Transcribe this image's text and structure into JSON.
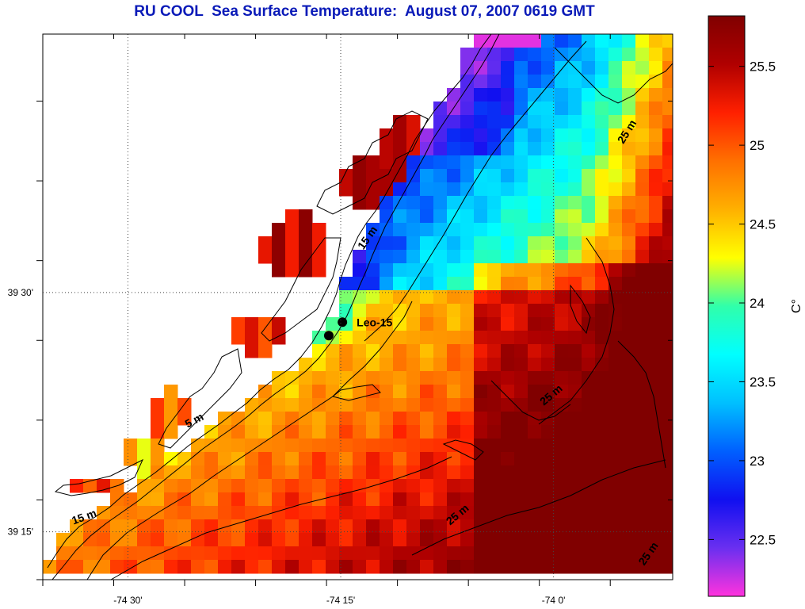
{
  "title": "RU COOL  Sea Surface Temperature:  August 07, 2007 0619 GMT",
  "map": {
    "lon_range": [
      -74.6,
      -73.86
    ],
    "lat_range": [
      39.2,
      39.77
    ],
    "x_tick_labels": [
      {
        "lon": -74.5,
        "label": "-74 30'"
      },
      {
        "lon": -74.25,
        "label": "-74 15'"
      },
      {
        "lon": -74.0,
        "label": "-74 0'"
      }
    ],
    "y_tick_labels": [
      {
        "lat": 39.5,
        "label": "39 30'"
      },
      {
        "lat": 39.25,
        "label": "39 15'"
      }
    ],
    "grid": true,
    "stations": [
      {
        "name": "Leo-15",
        "lon": -74.248,
        "lat": 39.469,
        "labelled": true
      },
      {
        "name": "",
        "lon": -74.264,
        "lat": 39.455,
        "labelled": false
      }
    ],
    "contour_labels": [
      {
        "text": "5 m",
        "lon": -74.42,
        "lat": 39.363
      },
      {
        "text": "15 m",
        "lon": -74.55,
        "lat": 39.262
      },
      {
        "text": "15 m",
        "lon": -74.215,
        "lat": 39.555
      },
      {
        "text": "25 m",
        "lon": -73.91,
        "lat": 39.666
      },
      {
        "text": "25 m",
        "lon": -74.0,
        "lat": 39.39
      },
      {
        "text": "25 m",
        "lon": -74.11,
        "lat": 39.265
      },
      {
        "text": "25 m",
        "lon": -73.885,
        "lat": 39.225
      }
    ]
  },
  "colorbar": {
    "range": [
      22.14,
      25.82
    ],
    "ticks": [
      {
        "value": 25.5,
        "label": "25.5"
      },
      {
        "value": 25,
        "label": "25"
      },
      {
        "value": 24.5,
        "label": "24.5"
      },
      {
        "value": 24,
        "label": "24"
      },
      {
        "value": 23.5,
        "label": "23.5"
      },
      {
        "value": 23,
        "label": "23"
      },
      {
        "value": 22.5,
        "label": "22.5"
      }
    ],
    "unit": "C°",
    "colormap": [
      "#ff33dd",
      "#6a2ff0",
      "#1010f0",
      "#0060ff",
      "#00c0ff",
      "#00ffff",
      "#30ffaa",
      "#ffff00",
      "#ffb000",
      "#ff7000",
      "#ff2000",
      "#b00000",
      "#800000"
    ]
  }
}
